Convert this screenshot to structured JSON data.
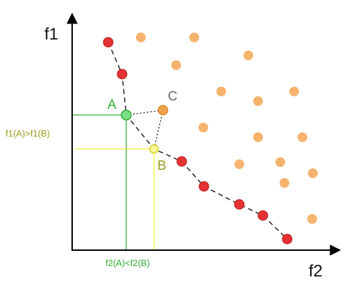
{
  "axes": {
    "y_label": "f1",
    "x_label": "f2"
  },
  "points": {
    "A_label": "A",
    "B_label": "B",
    "C_label": "C"
  },
  "annotations": {
    "f1_compare": "f1(A)>f1(B)",
    "f2_compare": "f2(A)<f2(B)"
  },
  "colors": {
    "pareto": "#e53232",
    "dominated": "#f6b36e",
    "point_a": "#7ee08a",
    "point_a_line": "#2faa2f",
    "point_b_line": "#f2f03a",
    "point_c": "#f0a24a",
    "label_c": "#666666",
    "label_b": "#9a9a1c",
    "label_a": "#2fae2f",
    "axis": "#000000"
  }
}
